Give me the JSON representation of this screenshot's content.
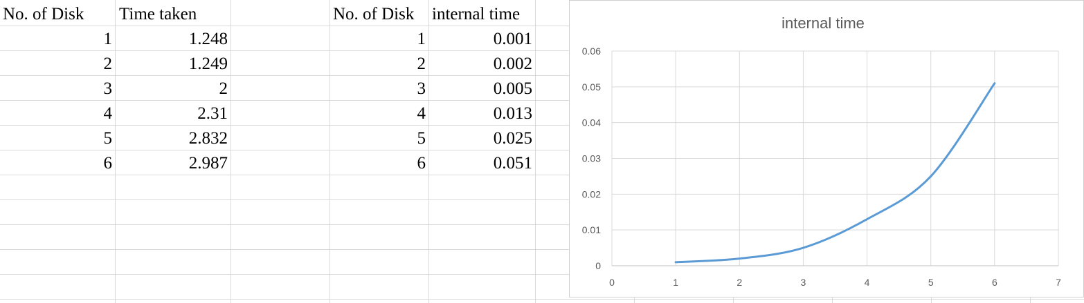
{
  "table1": {
    "headers": [
      "No. of Disk",
      "Time taken"
    ],
    "rows": [
      [
        "1",
        "1.248"
      ],
      [
        "2",
        "1.249"
      ],
      [
        "3",
        "2"
      ],
      [
        "4",
        "2.31"
      ],
      [
        "5",
        "2.832"
      ],
      [
        "6",
        "2.987"
      ]
    ]
  },
  "table2": {
    "headers": [
      "No. of Disk",
      "internal time"
    ],
    "rows": [
      [
        "1",
        "0.001"
      ],
      [
        "2",
        "0.002"
      ],
      [
        "3",
        "0.005"
      ],
      [
        "4",
        "0.013"
      ],
      [
        "5",
        "0.025"
      ],
      [
        "6",
        "0.051"
      ]
    ]
  },
  "chart_data": {
    "type": "line",
    "title": "internal time",
    "xlabel": "",
    "ylabel": "",
    "x": [
      1,
      2,
      3,
      4,
      5,
      6
    ],
    "series": [
      {
        "values": [
          0.001,
          0.002,
          0.005,
          0.013,
          0.025,
          0.051
        ],
        "color": "#5b9bd5",
        "smooth": true
      }
    ],
    "xlim": [
      0,
      7
    ],
    "ylim": [
      0,
      0.06
    ],
    "xticks": [
      "0",
      "1",
      "2",
      "3",
      "4",
      "5",
      "6",
      "7"
    ],
    "yticks": [
      "0",
      "0.01",
      "0.02",
      "0.03",
      "0.04",
      "0.05",
      "0.06"
    ],
    "grid": true,
    "legend": "none"
  },
  "colors": {
    "gridline": "#d9d9d9",
    "chart_grid": "#d9d9d9",
    "series": "#5b9bd5",
    "axis_text": "#595959"
  }
}
